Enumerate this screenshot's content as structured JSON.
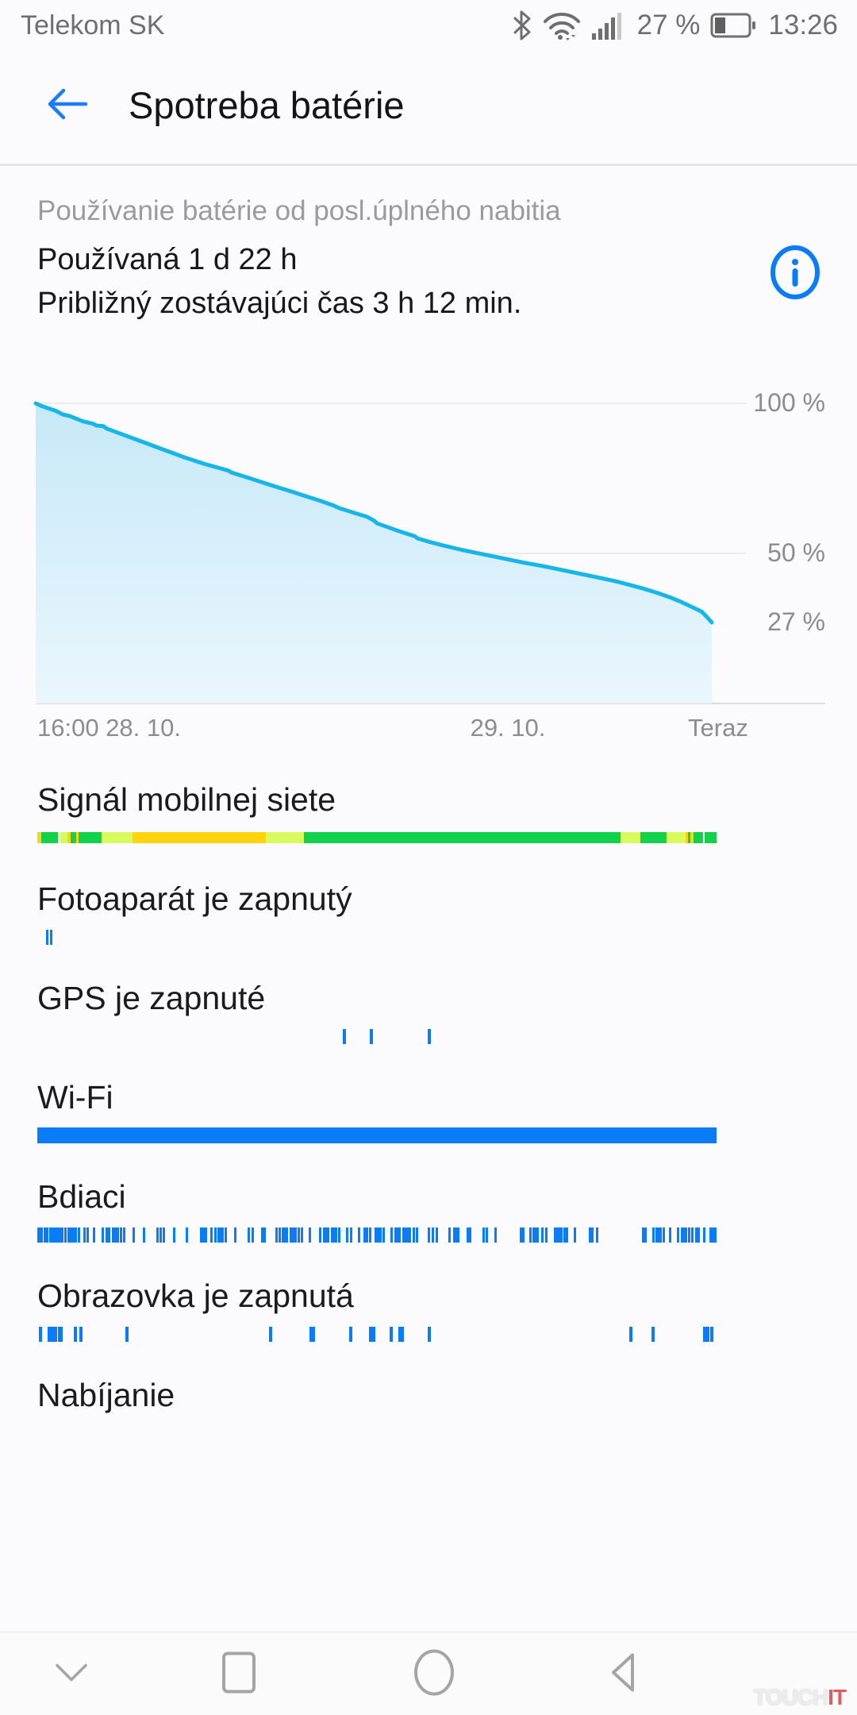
{
  "status_bar": {
    "carrier": "Telekom SK",
    "battery_percent": "27 %",
    "time": "13:26"
  },
  "header": {
    "title": "Spotreba batérie"
  },
  "summary": {
    "caption": "Používanie batérie od posl.úplného nabitia",
    "usage": "Používaná 1 d 22 h",
    "remaining": "Približný zostávajúci čas 3 h 12 min."
  },
  "chart_data": {
    "type": "area",
    "ylim": [
      0,
      100
    ],
    "grid": true,
    "line_color": "#17b6ea",
    "fill_top": "#c7e9f8",
    "fill_bottom": "#eaf6fd",
    "y_ticks": [
      {
        "label": "100 %",
        "value": 100
      },
      {
        "label": "50 %",
        "value": 50
      },
      {
        "label": "27 %",
        "value": 27
      }
    ],
    "x_ticks": [
      {
        "label": "16:00 28. 10.",
        "pos": 0,
        "align": "left"
      },
      {
        "label": "29. 10.",
        "pos": 0.696,
        "align": "center"
      },
      {
        "label": "Teraz",
        "pos": 1.007,
        "align": "center"
      }
    ],
    "series": [
      {
        "name": "battery_percent_over_time",
        "points": [
          [
            0,
            100
          ],
          [
            0.01,
            99
          ],
          [
            0.03,
            97.5
          ],
          [
            0.04,
            96.3
          ],
          [
            0.05,
            95.8
          ],
          [
            0.07,
            94
          ],
          [
            0.085,
            93.2
          ],
          [
            0.09,
            92.6
          ],
          [
            0.1,
            92.4
          ],
          [
            0.105,
            91.6
          ],
          [
            0.13,
            89.5
          ],
          [
            0.16,
            87
          ],
          [
            0.19,
            84.5
          ],
          [
            0.22,
            82
          ],
          [
            0.25,
            79.8
          ],
          [
            0.285,
            77.6
          ],
          [
            0.29,
            76.9
          ],
          [
            0.32,
            74.8
          ],
          [
            0.35,
            72.6
          ],
          [
            0.38,
            70.5
          ],
          [
            0.395,
            69.4
          ],
          [
            0.42,
            67.6
          ],
          [
            0.44,
            66
          ],
          [
            0.45,
            65
          ],
          [
            0.47,
            63.6
          ],
          [
            0.49,
            62.2
          ],
          [
            0.5,
            61
          ],
          [
            0.505,
            60
          ],
          [
            0.52,
            58.8
          ],
          [
            0.54,
            57.2
          ],
          [
            0.56,
            55.8
          ],
          [
            0.565,
            55
          ],
          [
            0.58,
            54
          ],
          [
            0.6,
            52.8
          ],
          [
            0.63,
            51.2
          ],
          [
            0.66,
            49.8
          ],
          [
            0.69,
            48.4
          ],
          [
            0.72,
            47
          ],
          [
            0.75,
            45.8
          ],
          [
            0.78,
            44.4
          ],
          [
            0.81,
            43
          ],
          [
            0.84,
            41.6
          ],
          [
            0.86,
            40.6
          ],
          [
            0.88,
            39.4
          ],
          [
            0.9,
            38.2
          ],
          [
            0.92,
            36.8
          ],
          [
            0.94,
            35.2
          ],
          [
            0.955,
            33.8
          ],
          [
            0.97,
            32.2
          ],
          [
            0.985,
            30.6
          ],
          [
            0.99,
            29.5
          ],
          [
            1,
            27
          ]
        ]
      }
    ]
  },
  "activity_rows": [
    {
      "label": "Signál mobilnej siete",
      "type": "segments",
      "segments": [
        [
          0,
          0.006,
          "#ffd30e"
        ],
        [
          0.006,
          0.03,
          "#12d14b"
        ],
        [
          0.03,
          0.034,
          "#ffffff"
        ],
        [
          0.034,
          0.044,
          "#d9fa5c"
        ],
        [
          0.044,
          0.049,
          "#ffd30e"
        ],
        [
          0.049,
          0.057,
          "#12d14b"
        ],
        [
          0.057,
          0.061,
          "#ffd30e"
        ],
        [
          0.061,
          0.095,
          "#12d14b"
        ],
        [
          0.095,
          0.14,
          "#d9fa5c"
        ],
        [
          0.14,
          0.336,
          "#ffd30e"
        ],
        [
          0.336,
          0.393,
          "#d9fa5c"
        ],
        [
          0.393,
          0.859,
          "#12d14b"
        ],
        [
          0.859,
          0.888,
          "#d9fa5c"
        ],
        [
          0.888,
          0.926,
          "#12d14b"
        ],
        [
          0.926,
          0.954,
          "#d9fa5c"
        ],
        [
          0.954,
          0.958,
          "#ffd30e"
        ],
        [
          0.958,
          0.962,
          "#12d14b"
        ],
        [
          0.962,
          0.966,
          "#ffd30e"
        ],
        [
          0.966,
          0.98,
          "#12d14b"
        ],
        [
          0.98,
          0.983,
          "#ffffff"
        ],
        [
          0.983,
          1,
          "#12d14b"
        ]
      ]
    },
    {
      "label": "Fotoaparát je zapnutý",
      "type": "ticks",
      "ticks": [
        [
          0.013,
          3
        ],
        [
          0.019,
          3
        ]
      ]
    },
    {
      "label": "GPS je zapnuté",
      "type": "ticks",
      "ticks": [
        [
          0.45,
          4
        ],
        [
          0.49,
          4
        ],
        [
          0.575,
          4
        ]
      ]
    },
    {
      "label": "Wi-Fi",
      "type": "solid",
      "color": "#0a7cf8"
    },
    {
      "label": "Bdiaci",
      "type": "ticks",
      "ticks": [
        [
          0,
          6
        ],
        [
          0.005,
          3
        ],
        [
          0.009,
          3
        ],
        [
          0.013,
          3
        ],
        [
          0.017,
          6
        ],
        [
          0.024,
          3
        ],
        [
          0.028,
          3
        ],
        [
          0.032,
          6
        ],
        [
          0.04,
          3
        ],
        [
          0.044,
          3
        ],
        [
          0.048,
          6
        ],
        [
          0.055,
          3
        ],
        [
          0.059,
          3
        ],
        [
          0.068,
          3
        ],
        [
          0.072,
          3
        ],
        [
          0.082,
          3
        ],
        [
          0.095,
          3
        ],
        [
          0.1,
          3
        ],
        [
          0.104,
          3
        ],
        [
          0.11,
          6
        ],
        [
          0.117,
          3
        ],
        [
          0.121,
          3
        ],
        [
          0.126,
          3
        ],
        [
          0.14,
          3
        ],
        [
          0.155,
          3
        ],
        [
          0.175,
          3
        ],
        [
          0.18,
          3
        ],
        [
          0.185,
          3
        ],
        [
          0.2,
          3
        ],
        [
          0.218,
          3
        ],
        [
          0.24,
          6
        ],
        [
          0.246,
          3
        ],
        [
          0.255,
          3
        ],
        [
          0.26,
          3
        ],
        [
          0.265,
          6
        ],
        [
          0.271,
          3
        ],
        [
          0.276,
          3
        ],
        [
          0.29,
          3
        ],
        [
          0.31,
          3
        ],
        [
          0.315,
          3
        ],
        [
          0.33,
          6
        ],
        [
          0.35,
          3
        ],
        [
          0.355,
          3
        ],
        [
          0.36,
          6
        ],
        [
          0.366,
          3
        ],
        [
          0.371,
          6
        ],
        [
          0.378,
          3
        ],
        [
          0.383,
          3
        ],
        [
          0.388,
          3
        ],
        [
          0.4,
          3
        ],
        [
          0.415,
          3
        ],
        [
          0.42,
          6
        ],
        [
          0.426,
          3
        ],
        [
          0.432,
          6
        ],
        [
          0.438,
          3
        ],
        [
          0.443,
          3
        ],
        [
          0.455,
          3
        ],
        [
          0.46,
          3
        ],
        [
          0.472,
          3
        ],
        [
          0.48,
          3
        ],
        [
          0.484,
          3
        ],
        [
          0.488,
          3
        ],
        [
          0.497,
          6
        ],
        [
          0.503,
          3
        ],
        [
          0.508,
          3
        ],
        [
          0.52,
          3
        ],
        [
          0.526,
          6
        ],
        [
          0.532,
          3
        ],
        [
          0.537,
          3
        ],
        [
          0.541,
          6
        ],
        [
          0.547,
          3
        ],
        [
          0.552,
          3
        ],
        [
          0.557,
          3
        ],
        [
          0.575,
          3
        ],
        [
          0.581,
          3
        ],
        [
          0.587,
          3
        ],
        [
          0.605,
          3
        ],
        [
          0.612,
          6
        ],
        [
          0.618,
          3
        ],
        [
          0.632,
          3
        ],
        [
          0.636,
          3
        ],
        [
          0.655,
          3
        ],
        [
          0.66,
          3
        ],
        [
          0.673,
          3
        ],
        [
          0.71,
          6
        ],
        [
          0.724,
          3
        ],
        [
          0.729,
          6
        ],
        [
          0.735,
          3
        ],
        [
          0.742,
          3
        ],
        [
          0.748,
          3
        ],
        [
          0.76,
          3
        ],
        [
          0.764,
          6
        ],
        [
          0.77,
          3
        ],
        [
          0.774,
          3
        ],
        [
          0.778,
          3
        ],
        [
          0.79,
          3
        ],
        [
          0.812,
          3
        ],
        [
          0.816,
          3
        ],
        [
          0.823,
          3
        ],
        [
          0.89,
          6
        ],
        [
          0.905,
          3
        ],
        [
          0.91,
          6
        ],
        [
          0.916,
          3
        ],
        [
          0.921,
          3
        ],
        [
          0.93,
          3
        ],
        [
          0.942,
          3
        ],
        [
          0.947,
          6
        ],
        [
          0.953,
          3
        ],
        [
          0.958,
          3
        ],
        [
          0.963,
          3
        ],
        [
          0.968,
          6
        ],
        [
          0.98,
          3
        ],
        [
          0.99,
          9
        ],
        [
          0.997,
          3
        ]
      ]
    },
    {
      "label": "Obrazovka je zapnutá",
      "type": "ticks",
      "ticks": [
        [
          0.002,
          4
        ],
        [
          0.015,
          4
        ],
        [
          0.02,
          4
        ],
        [
          0.025,
          4
        ],
        [
          0.03,
          6
        ],
        [
          0.054,
          4
        ],
        [
          0.062,
          4
        ],
        [
          0.13,
          4
        ],
        [
          0.341,
          4
        ],
        [
          0.401,
          7
        ],
        [
          0.459,
          4
        ],
        [
          0.488,
          4
        ],
        [
          0.493,
          4
        ],
        [
          0.519,
          4
        ],
        [
          0.532,
          7
        ],
        [
          0.575,
          4
        ],
        [
          0.871,
          4
        ],
        [
          0.904,
          4
        ],
        [
          0.98,
          4
        ],
        [
          0.985,
          4
        ],
        [
          0.991,
          4
        ]
      ]
    },
    {
      "label": "Nabíjanie",
      "type": "none"
    }
  ],
  "nav": {
    "buttons": [
      {
        "name": "hide-navigation",
        "icon": "chevron-down-icon"
      },
      {
        "name": "recents",
        "icon": "square-icon"
      },
      {
        "name": "home",
        "icon": "circle-icon"
      },
      {
        "name": "back",
        "icon": "triangle-left-icon"
      }
    ]
  },
  "watermark": {
    "part1": "TOUCH",
    "part2": "IT"
  },
  "colors": {
    "accent_blue": "#0a7cf8",
    "tick_blue": "#0a7cf8",
    "status_gray": "#6f6f6f",
    "text_gray": "#8c8c8c"
  }
}
